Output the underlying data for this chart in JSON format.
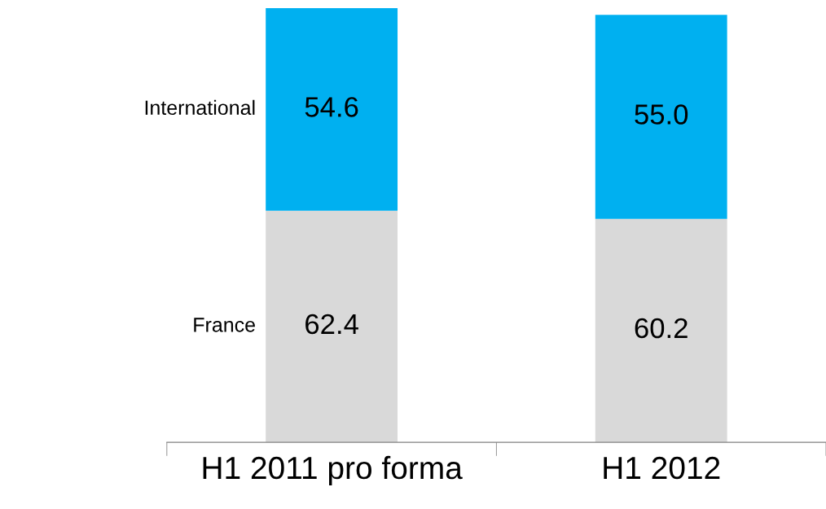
{
  "chart_data": {
    "type": "bar",
    "stacked": true,
    "categories": [
      "H1 2011 pro forma",
      "H1 2012"
    ],
    "series": [
      {
        "name": "France",
        "color": "#d9d9d9",
        "values": [
          62.4,
          60.2
        ],
        "value_labels": [
          "62.4",
          "60.2"
        ]
      },
      {
        "name": "International",
        "color": "#00b0f0",
        "values": [
          54.6,
          55.0
        ],
        "value_labels": [
          "54.6",
          "55.0"
        ]
      }
    ]
  }
}
